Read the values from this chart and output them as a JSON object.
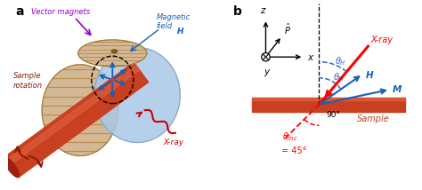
{
  "panel_a_label": "a",
  "panel_b_label": "b",
  "bg_color": "#ffffff",
  "sample_color": "#c0392b",
  "xray_color": "#c0392b",
  "blue_color": "#1a5fb4",
  "purple_color": "#9400d3",
  "dark_red": "#8b1a00",
  "magnet_tan": "#d4b896",
  "magnet_stripe": "#c0a070",
  "light_blue_disk": "#aac8e8",
  "dashed_blue": "#3366cc",
  "orange_red": "#d45000",
  "label_vector_magnets": "Vector magnets",
  "label_magnetic_field": "Magnetic\nfield",
  "label_H_italic": "H",
  "label_sample_rotation": "Sample\nrotation",
  "label_xray_a": "X-ray",
  "label_xray_b": "X-ray",
  "label_sample_b": "Sample",
  "label_z": "z",
  "label_x": "x",
  "label_y": "y",
  "label_90": "90°",
  "label_45": "= 45°",
  "label_M": "M",
  "label_H_b": "H"
}
